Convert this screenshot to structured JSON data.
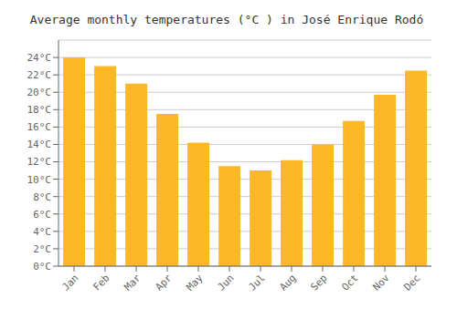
{
  "chart_data": {
    "type": "bar",
    "title": "Average monthly temperatures (°C ) in José Enrique Rodó",
    "categories": [
      "Jan",
      "Feb",
      "Mar",
      "Apr",
      "May",
      "Jun",
      "Jul",
      "Aug",
      "Sep",
      "Oct",
      "Nov",
      "Dec"
    ],
    "values": [
      24.0,
      23.0,
      21.0,
      17.5,
      14.2,
      11.5,
      11.0,
      12.2,
      14.0,
      16.7,
      19.7,
      22.5
    ],
    "color": "#FDB827",
    "ylim": [
      0,
      26
    ],
    "yticks": [
      {
        "value": 0,
        "label": "0°C"
      },
      {
        "value": 2,
        "label": "2°C"
      },
      {
        "value": 4,
        "label": "4°C"
      },
      {
        "value": 6,
        "label": "6°C"
      },
      {
        "value": 8,
        "label": "8°C"
      },
      {
        "value": 10,
        "label": "10°C"
      },
      {
        "value": 12,
        "label": "12°C"
      },
      {
        "value": 14,
        "label": "14°C"
      },
      {
        "value": 16,
        "label": "16°C"
      },
      {
        "value": 18,
        "label": "18°C"
      },
      {
        "value": 20,
        "label": "20°C"
      },
      {
        "value": 22,
        "label": "22°C"
      },
      {
        "value": 24,
        "label": "24°C"
      }
    ],
    "grid": true
  }
}
